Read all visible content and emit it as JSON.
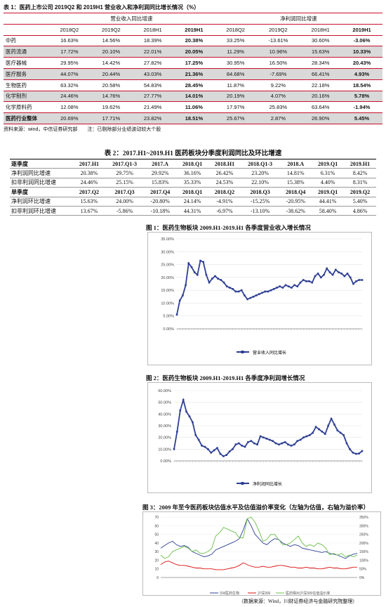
{
  "table1": {
    "caption": "表 1：医药上市公司 2019Q2 和 2019H1 营业收入和净利润同比增长情况（%）",
    "groups": [
      "营业收入同比增速",
      "净利润同比增速"
    ],
    "columns": [
      "2018Q2",
      "2019Q2",
      "2018H1",
      "2019H1",
      "2018Q2",
      "2019Q2",
      "2018H1",
      "2019H1"
    ],
    "rows": [
      {
        "label": "中药",
        "values": [
          "16.63%",
          "14.56%",
          "18.39%",
          "20.38%",
          "33.25%",
          "-13.61%",
          "30.60%",
          "-3.06%"
        ]
      },
      {
        "label": "医药流通",
        "values": [
          "17.72%",
          "20.10%",
          "22.01%",
          "20.05%",
          "11.29%",
          "10.96%",
          "15.63%",
          "10.33%"
        ]
      },
      {
        "label": "医疗器械",
        "values": [
          "29.95%",
          "14.42%",
          "27.82%",
          "17.25%",
          "30.95%",
          "16.50%",
          "28.34%",
          "20.43%"
        ]
      },
      {
        "label": "医疗服务",
        "values": [
          "44.07%",
          "20.44%",
          "43.03%",
          "21.36%",
          "84.68%",
          "-7.69%",
          "66.41%",
          "4.93%"
        ]
      },
      {
        "label": "生物医药",
        "values": [
          "63.32%",
          "20.58%",
          "54.83%",
          "28.45%",
          "11.87%",
          "9.22%",
          "22.18%",
          "18.54%"
        ]
      },
      {
        "label": "化学制剂",
        "values": [
          "24.46%",
          "14.76%",
          "27.77%",
          "14.01%",
          "20.19%",
          "4.07%",
          "20.16%",
          "5.78%"
        ]
      },
      {
        "label": "化学原料药",
        "values": [
          "12.08%",
          "19.62%",
          "21.49%",
          "11.06%",
          "17.97%",
          "25.83%",
          "63.64%",
          "-1.94%"
        ]
      },
      {
        "label": "医药行业整体",
        "values": [
          "20.69%",
          "17.71%",
          "23.82%",
          "18.51%",
          "25.67%",
          "2.87%",
          "26.90%",
          "5.45%"
        ]
      }
    ],
    "source": "资料来源：wind，中信证券研究部　　注：已剔除部分业绩波动较大个股"
  },
  "table2": {
    "caption": "表 2：2017.H1~2019.H1 医药板块分季度利润同比及环比增速",
    "header1": [
      "逐季度",
      "2017.H1",
      "2017.Q1-3",
      "2017.A",
      "2018.Q1",
      "2018.H1",
      "2018.Q1-3",
      "2018.A",
      "2019.Q1",
      "2019.H1"
    ],
    "row1": [
      "净利润同比增速",
      "20.38%",
      "29.75%",
      "29.92%",
      "36.16%",
      "26.42%",
      "23.20%",
      "14.81%",
      "6.31%",
      "8.42%"
    ],
    "row2": [
      "扣非利润同比增速",
      "24.46%",
      "25.15%",
      "15.83%",
      "35.33%",
      "24.53%",
      "22.10%",
      "15.38%",
      "4.40%",
      "8.31%"
    ],
    "header2": [
      "单季度",
      "2017.Q2",
      "2017.Q3",
      "2017.Q4",
      "2018.Q1",
      "2018.Q2",
      "2018.Q3",
      "2018.Q4",
      "2019.Q1",
      "2019.Q2"
    ],
    "row3": [
      "净利润环比增速",
      "15.63%",
      "24.00%",
      "-20.80%",
      "24.14%",
      "-4.91%",
      "-15.25%",
      "-20.95%",
      "44.41%",
      "5.40%"
    ],
    "row4": [
      "扣非利润环比增速",
      "13.67%",
      "-5.86%",
      "-10.18%",
      "44.31%",
      "-6.97%",
      "-13.10%",
      "-38.62%",
      "58.40%",
      "4.86%"
    ]
  },
  "fig1": {
    "title": "图 1：医药生物板块 2009.H1-2019.H1 各季度营业收入增长情况",
    "legend": "营业收入同比增长",
    "y_ticks": [
      "0.00%",
      "5.00%",
      "10.00%",
      "15.00%",
      "20.00%",
      "25.00%",
      "30.00%",
      "35.00%"
    ]
  },
  "fig2": {
    "title": "图 2：医药生物板块 2009.H1-2019.H1 各季度净利润增长情况",
    "legend": "净利润同比增长",
    "y_ticks": [
      "0.00%",
      "10.00%",
      "20.00%",
      "30.00%",
      "40.00%",
      "50.00%",
      "60.00%"
    ]
  },
  "fig3": {
    "title": "图 3：2009 年至今医药板块估值水平及估值溢价率变化（左轴为估值，右轴为溢价率）",
    "legend": [
      "SW医药生物",
      "沪深300",
      "医药相对沪深300估值溢价率"
    ],
    "y_left_ticks": [
      "0",
      "10",
      "20",
      "30",
      "40",
      "50",
      "60",
      "70"
    ],
    "y_right_ticks": [
      "0%",
      "50%",
      "100%",
      "150%",
      "200%",
      "250%",
      "300%",
      "350%"
    ],
    "source": "（数据来源：Wind，川财证券经济与金融研究院整理）"
  },
  "chart_data": [
    {
      "type": "line",
      "title": "图 1：医药生物板块 2009.H1-2019.H1 各季度营业收入增长情况",
      "ylim": [
        0,
        35
      ],
      "series": [
        {
          "name": "营业收入同比增长",
          "values": [
            5.5,
            11,
            13,
            17,
            25.5,
            24,
            22,
            21,
            26.5,
            26,
            21,
            18,
            19.5,
            20.5,
            19.5,
            19,
            18,
            16.5,
            16,
            15.5,
            14.5,
            14.5,
            15,
            13,
            11.5,
            12,
            12.5,
            13,
            13.5,
            14,
            14.5,
            14.5,
            15,
            15.5,
            16,
            16.5,
            16,
            17,
            16.5,
            16,
            17,
            16.5,
            18,
            19,
            18.5,
            18.5,
            18,
            20.5,
            21.5,
            20,
            21,
            23.5,
            22,
            21,
            23,
            22,
            21.5,
            20.5,
            21.5,
            20,
            17.5,
            18.5,
            19,
            19
          ]
        }
      ]
    },
    {
      "type": "line",
      "title": "图 2：医药生物板块 2009.H1-2019.H1 各季度净利润增长情况",
      "ylim": [
        0,
        60
      ],
      "series": [
        {
          "name": "净利润同比增长",
          "values": [
            10,
            25,
            43,
            52,
            42,
            38,
            33,
            22,
            18,
            13,
            12,
            10,
            7,
            9,
            11,
            6,
            4,
            5,
            8,
            10,
            14,
            15,
            13,
            12,
            16,
            17,
            15,
            14,
            21,
            20,
            19,
            18,
            17,
            15,
            14,
            15,
            16,
            14,
            13,
            14,
            17,
            18,
            20,
            21,
            22,
            24,
            29,
            27,
            25,
            23,
            30,
            36,
            31,
            26,
            24,
            22,
            15,
            10,
            7,
            6,
            6.3,
            8.4
          ]
        }
      ]
    },
    {
      "type": "line",
      "title": "图 3：2009 年至今医药板块估值水平及估值溢价率变化（左轴为估值，右轴为溢价率）",
      "ylim": [
        0,
        70
      ],
      "y2lim": [
        0,
        3.5
      ],
      "series": [
        {
          "name": "SW医药生物",
          "axis": "left",
          "values": [
            34,
            37,
            40,
            42,
            38,
            36,
            37,
            35,
            30,
            28,
            26,
            24,
            25,
            27,
            32,
            34,
            36,
            38,
            40,
            42,
            45,
            55,
            68,
            60,
            50,
            45,
            40,
            38,
            42,
            45,
            44,
            40,
            38,
            36,
            38,
            37,
            34,
            33,
            32,
            31,
            30,
            29,
            30,
            28,
            27,
            26,
            24,
            22,
            25,
            27,
            28
          ]
        },
        {
          "name": "沪深300",
          "axis": "left",
          "values": [
            15,
            18,
            19,
            17,
            15,
            14,
            14,
            13,
            12,
            11,
            11,
            10,
            10,
            10,
            9,
            9,
            9,
            10,
            11,
            12,
            14,
            17,
            15,
            13,
            12,
            12,
            13,
            12,
            12,
            13,
            14,
            14,
            13,
            12,
            12,
            11,
            11,
            12,
            11,
            11,
            10,
            10,
            11,
            12,
            11,
            11,
            10,
            10,
            11,
            12,
            12
          ]
        },
        {
          "name": "医药相对沪深300估值溢价率",
          "axis": "right",
          "values": [
            1.3,
            1.1,
            1.2,
            1.5,
            1.6,
            1.7,
            1.8,
            1.7,
            1.5,
            1.6,
            1.4,
            1.4,
            1.5,
            1.7,
            2.4,
            2.6,
            2.9,
            2.8,
            2.7,
            2.6,
            2.3,
            2.3,
            3.4,
            3.5,
            3.2,
            2.7,
            2.1,
            2.2,
            2.5,
            2.5,
            2.2,
            1.9,
            1.9,
            2.0,
            2.2,
            2.4,
            2.0,
            1.8,
            1.9,
            1.8,
            2.0,
            1.9,
            1.7,
            1.3,
            1.4,
            1.3,
            1.4,
            1.2,
            1.3,
            1.2,
            1.3
          ]
        }
      ]
    }
  ]
}
